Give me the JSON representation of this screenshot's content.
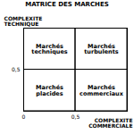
{
  "chart_data": {
    "type": "matrix",
    "title": "MATRICE DES MARCHES",
    "x_label": "COMPLEXITE COMMERCIALE",
    "y_label": "COMPLEXITE TECHNIQUE",
    "xlim": [
      0,
      1
    ],
    "ylim": [
      0,
      1
    ],
    "xticks": [
      0,
      {
        "value": 0.5,
        "label": "0,5"
      }
    ],
    "yticks": [
      {
        "value": 0.5,
        "label": "0,5"
      }
    ],
    "cells": [
      {
        "x": [
          0,
          0.5
        ],
        "y": [
          0.5,
          1
        ],
        "label": "Marchés techniques"
      },
      {
        "x": [
          0.5,
          1
        ],
        "y": [
          0.5,
          1
        ],
        "label": "Marchés turbulents"
      },
      {
        "x": [
          0,
          0.5
        ],
        "y": [
          0,
          0.5
        ],
        "label": "Marchés placides"
      },
      {
        "x": [
          0.5,
          1
        ],
        "y": [
          0,
          0.5
        ],
        "label": "Marchés commerciaux"
      }
    ]
  }
}
